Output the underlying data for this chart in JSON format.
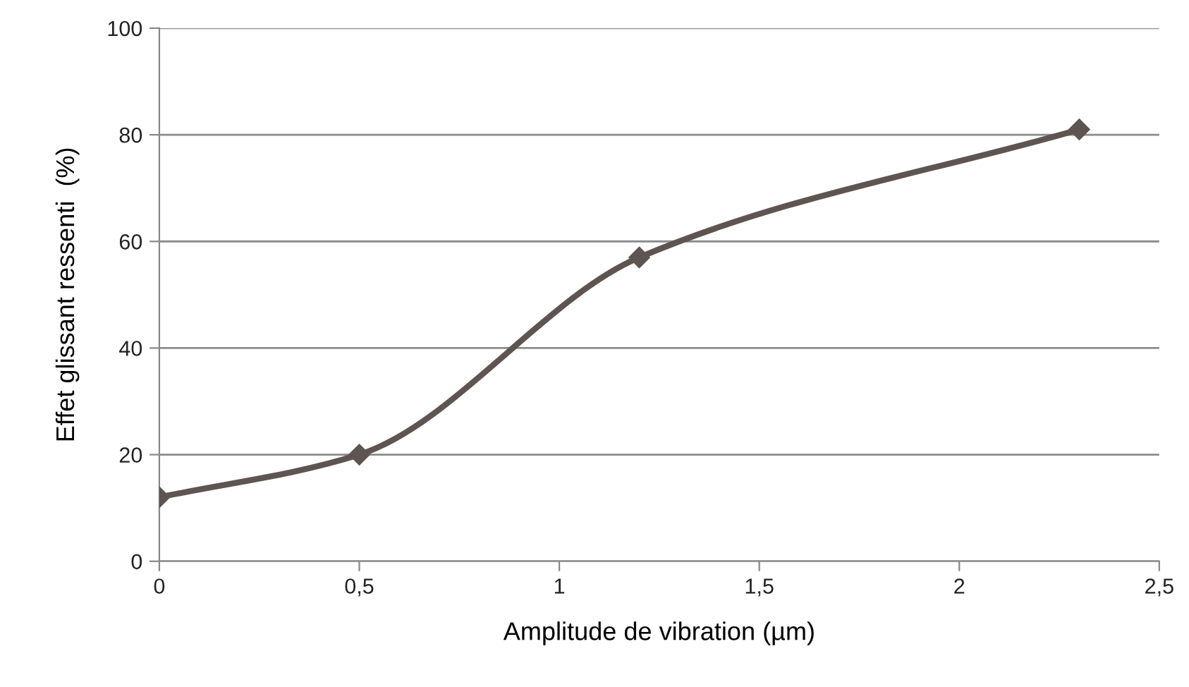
{
  "chart_data": {
    "type": "line",
    "xlabel": "Amplitude de vibration (µm)",
    "ylabel": "Effet glissant ressenti  (%)",
    "x": [
      0,
      0.5,
      1.2,
      2.3
    ],
    "series": [
      {
        "color": "#5e5552",
        "values": [
          12,
          20,
          57,
          81
        ]
      }
    ],
    "xlim": [
      0,
      2.5
    ],
    "ylim": [
      0,
      100
    ],
    "xticks": [
      0,
      {
        "value": 0.5,
        "label": "0,5"
      },
      1,
      {
        "value": 1.5,
        "label": "1,5"
      },
      2,
      {
        "value": 2.5,
        "label": "2,5"
      }
    ],
    "yticks": [
      0,
      20,
      40,
      60,
      80,
      100
    ],
    "grid": "y",
    "marker": "diamond",
    "line_style": "solid",
    "legend": false
  }
}
